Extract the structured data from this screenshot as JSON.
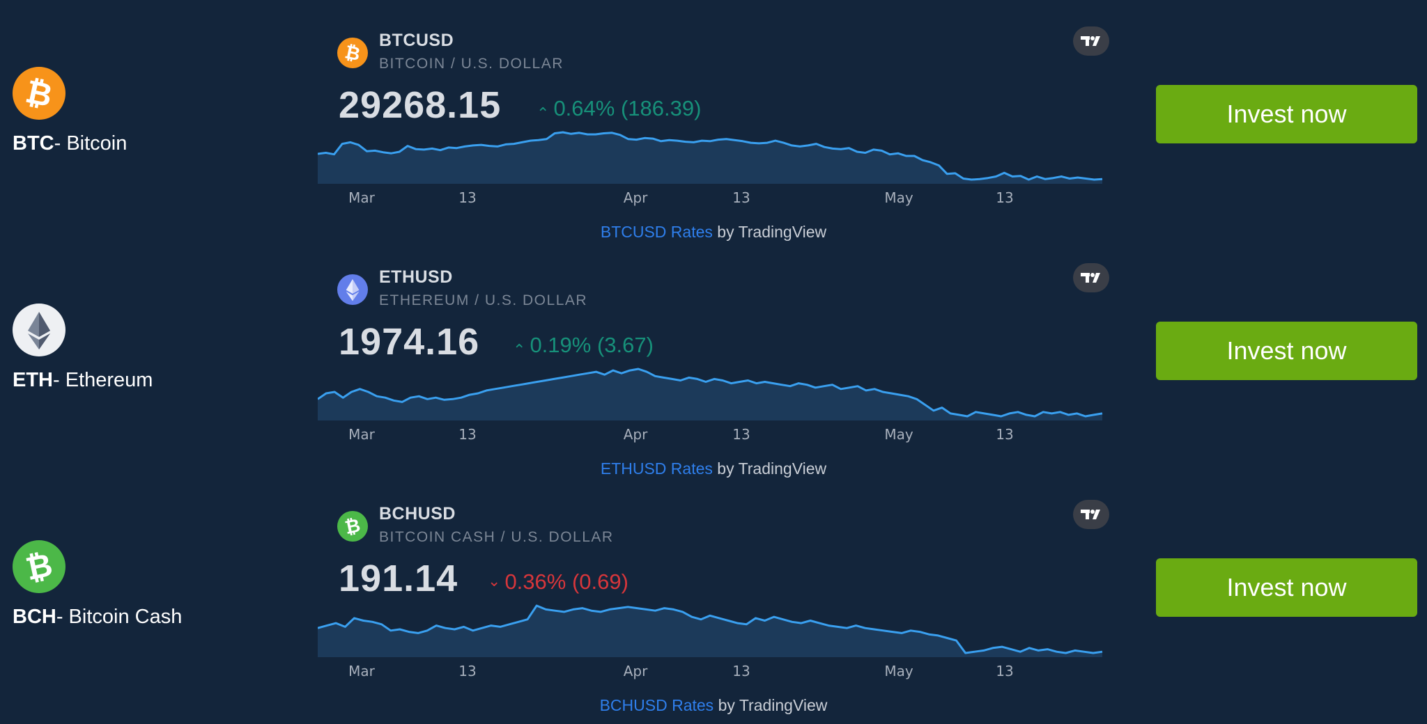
{
  "cryptos": [
    {
      "ticker": "BTC",
      "label_suffix": "- Bitcoin",
      "icon": "bitcoin-icon",
      "icon_color": "#f7931a",
      "widget": {
        "symbol": "BTCUSD",
        "name": "BITCOIN / U.S. DOLLAR",
        "price": "29268.15",
        "change": "0.64% (186.39)",
        "direction": "up",
        "arrow": "⌃",
        "axis_labels": [
          "Mar",
          "13",
          "Apr",
          "13",
          "May",
          "13"
        ],
        "attribution_link": "BTCUSD Rates",
        "attribution_suffix": " by TradingView"
      },
      "button": "Invest now"
    },
    {
      "ticker": "ETH",
      "label_suffix": "- Ethereum",
      "icon": "ethereum-icon",
      "icon_color": "#627eea",
      "widget": {
        "symbol": "ETHUSD",
        "name": "ETHEREUM / U.S. DOLLAR",
        "price": "1974.16",
        "change": "0.19% (3.67)",
        "direction": "up",
        "arrow": "⌃",
        "axis_labels": [
          "Mar",
          "13",
          "Apr",
          "13",
          "May",
          "13"
        ],
        "attribution_link": "ETHUSD Rates",
        "attribution_suffix": " by TradingView"
      },
      "button": "Invest now"
    },
    {
      "ticker": "BCH",
      "label_suffix": "- Bitcoin Cash",
      "icon": "bitcoin-cash-icon",
      "icon_color": "#4cb848",
      "widget": {
        "symbol": "BCHUSD",
        "name": "BITCOIN CASH / U.S. DOLLAR",
        "price": "191.14",
        "change": "0.36% (0.69)",
        "direction": "down",
        "arrow": "⌄",
        "axis_labels": [
          "Mar",
          "13",
          "Apr",
          "13",
          "May",
          "13"
        ],
        "attribution_link": "BCHUSD Rates",
        "attribution_suffix": " by TradingView"
      },
      "button": "Invest now"
    }
  ],
  "colors": {
    "background": "#13253b",
    "line": "#3aa0f0",
    "area": "#1c3a5a",
    "positive": "#17917a",
    "negative": "#d7363b",
    "button": "#6aab12"
  },
  "chart_data": [
    {
      "type": "area",
      "title": "BTCUSD",
      "x_ticks": [
        "Mar",
        "13",
        "Apr",
        "13",
        "May",
        "13"
      ],
      "values": [
        28100,
        28200,
        28050,
        29050,
        29200,
        28950,
        28350,
        28400,
        28250,
        28150,
        28300,
        28850,
        28550,
        28500,
        28600,
        28450,
        28700,
        28650,
        28800,
        28900,
        28950,
        28850,
        28800,
        29000,
        29050,
        29200,
        29350,
        29400,
        29500,
        30050,
        30150,
        30000,
        30100,
        29950,
        29950,
        30050,
        30100,
        29900,
        29500,
        29450,
        29600,
        29550,
        29300,
        29400,
        29350,
        29250,
        29200,
        29350,
        29300,
        29450,
        29500,
        29400,
        29300,
        29150,
        29100,
        29150,
        29350,
        29150,
        28900,
        28800,
        28900,
        29050,
        28750,
        28600,
        28550,
        28650,
        28300,
        28200,
        28500,
        28400,
        28050,
        28150,
        27900,
        27900,
        27500,
        27300,
        27000,
        26200,
        26250,
        25750,
        25650,
        25700,
        25800,
        25950,
        26300,
        25950,
        26000,
        25650,
        25950,
        25700,
        25800,
        25950,
        25750,
        25850,
        25750,
        25650,
        25700
      ]
    },
    {
      "type": "area",
      "title": "ETHUSD",
      "x_ticks": [
        "Mar",
        "13",
        "Apr",
        "13",
        "May",
        "13"
      ],
      "values": [
        1780,
        1820,
        1830,
        1790,
        1830,
        1850,
        1830,
        1800,
        1790,
        1770,
        1760,
        1790,
        1800,
        1780,
        1790,
        1775,
        1780,
        1790,
        1810,
        1820,
        1840,
        1850,
        1860,
        1870,
        1880,
        1890,
        1900,
        1910,
        1920,
        1930,
        1940,
        1950,
        1960,
        1970,
        1950,
        1980,
        1960,
        1980,
        1990,
        1970,
        1940,
        1930,
        1920,
        1910,
        1930,
        1920,
        1900,
        1920,
        1910,
        1890,
        1900,
        1910,
        1890,
        1900,
        1890,
        1880,
        1870,
        1890,
        1880,
        1860,
        1870,
        1880,
        1850,
        1860,
        1870,
        1840,
        1850,
        1830,
        1820,
        1810,
        1800,
        1780,
        1740,
        1700,
        1720,
        1680,
        1670,
        1660,
        1690,
        1680,
        1670,
        1660,
        1680,
        1690,
        1670,
        1660,
        1690,
        1680,
        1690,
        1670,
        1680,
        1660,
        1670,
        1680
      ]
    },
    {
      "type": "area",
      "title": "BCHUSD",
      "x_ticks": [
        "Mar",
        "13",
        "Apr",
        "13",
        "May",
        "13"
      ],
      "values": [
        120,
        122,
        124,
        121,
        128,
        126,
        125,
        123,
        118,
        119,
        117,
        116,
        118,
        122,
        120,
        119,
        121,
        118,
        120,
        122,
        121,
        123,
        125,
        127,
        138,
        135,
        134,
        133,
        135,
        136,
        134,
        133,
        135,
        136,
        137,
        136,
        135,
        134,
        136,
        135,
        133,
        129,
        127,
        130,
        128,
        126,
        124,
        123,
        128,
        126,
        129,
        127,
        125,
        124,
        126,
        124,
        122,
        121,
        120,
        122,
        120,
        119,
        118,
        117,
        116,
        118,
        117,
        115,
        114,
        112,
        110,
        100,
        101,
        102,
        104,
        105,
        103,
        101,
        104,
        102,
        103,
        101,
        100,
        102,
        101,
        100,
        101
      ]
    }
  ]
}
